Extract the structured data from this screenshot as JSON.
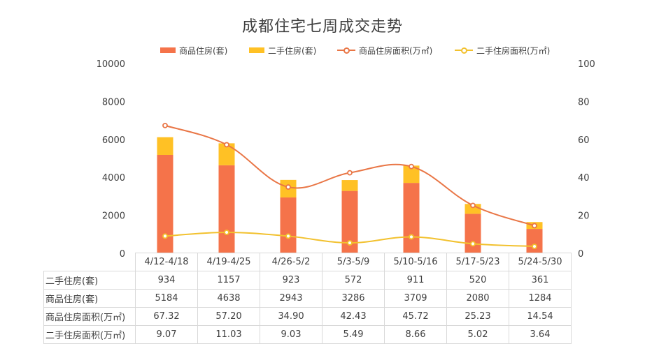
{
  "chart_data": {
    "type": "bar",
    "title": "成都住宅七周成交走势",
    "categories": [
      "4/12-4/18",
      "4/19-4/25",
      "4/26-5/2",
      "5/3-5/9",
      "5/10-5/16",
      "5/17-5/23",
      "5/24-5/30"
    ],
    "series": [
      {
        "name": "商品住房(套)",
        "type": "bar",
        "axis": "left",
        "stack": "units",
        "color": "#F5734A",
        "values": [
          5184,
          4638,
          2943,
          3286,
          3709,
          2080,
          1284
        ]
      },
      {
        "name": "二手住房(套)",
        "type": "bar",
        "axis": "left",
        "stack": "units",
        "color": "#FFC125",
        "values": [
          934,
          1157,
          923,
          572,
          911,
          520,
          361
        ]
      },
      {
        "name": "商品住房面积(万㎡)",
        "type": "line",
        "axis": "right",
        "color": "#E97646",
        "values": [
          67.32,
          57.2,
          34.9,
          42.43,
          45.72,
          25.23,
          14.54
        ]
      },
      {
        "name": "二手住房面积(万㎡)",
        "type": "line",
        "axis": "right",
        "color": "#F2C12E",
        "values": [
          9.07,
          11.03,
          9.03,
          5.49,
          8.66,
          5.02,
          3.64
        ]
      }
    ],
    "y_left": {
      "min": 0,
      "max": 10000,
      "ticks": [
        0,
        2000,
        4000,
        6000,
        8000,
        10000
      ]
    },
    "y_right": {
      "min": 0,
      "max": 100,
      "ticks": [
        0,
        20,
        40,
        60,
        80,
        100
      ]
    },
    "grid": false,
    "legend_position": "top",
    "table": {
      "rows": [
        {
          "label": "二手住房(套)",
          "values": [
            "934",
            "1157",
            "923",
            "572",
            "911",
            "520",
            "361"
          ]
        },
        {
          "label": "商品住房(套)",
          "values": [
            "5184",
            "4638",
            "2943",
            "3286",
            "3709",
            "2080",
            "1284"
          ]
        },
        {
          "label": "商品住房面积(万㎡)",
          "values": [
            "67.32",
            "57.20",
            "34.90",
            "42.43",
            "45.72",
            "25.23",
            "14.54"
          ]
        },
        {
          "label": "二手住房面积(万㎡)",
          "values": [
            "9.07",
            "11.03",
            "9.03",
            "5.49",
            "8.66",
            "5.02",
            "3.64"
          ]
        }
      ]
    }
  }
}
